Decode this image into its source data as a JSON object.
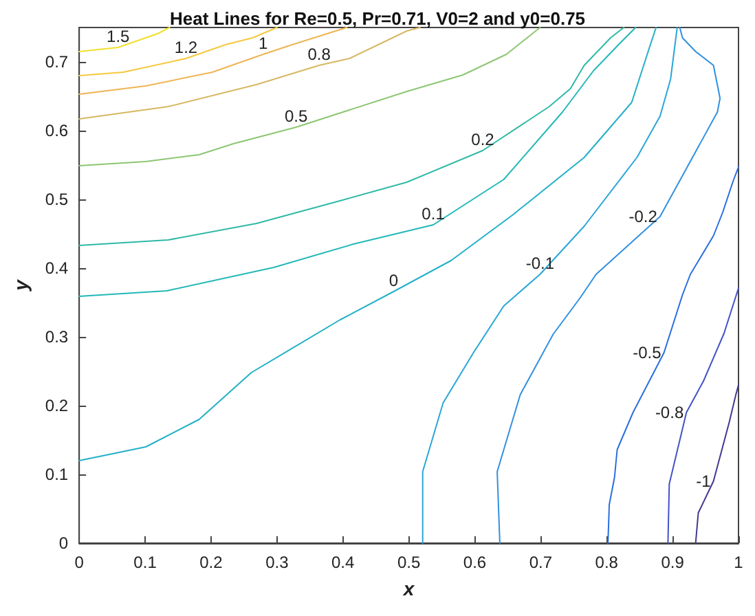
{
  "chart_data": {
    "type": "line",
    "title": "Heat Lines for Re=0.5, Pr=0.71, V0=2 and y0=0.75",
    "xlabel": "x",
    "ylabel": "y",
    "xlim": [
      0,
      1
    ],
    "ylim": [
      0,
      0.75
    ],
    "xticks": [
      0,
      0.1,
      0.2,
      0.3,
      0.4,
      0.5,
      0.6,
      0.7,
      0.8,
      0.9,
      1
    ],
    "yticks": [
      0,
      0.1,
      0.2,
      0.3,
      0.4,
      0.5,
      0.6,
      0.7
    ],
    "grid": false,
    "legend": false,
    "marker": "none",
    "line_style": "solid",
    "series": [
      {
        "name": "1.5",
        "color": "#f2e02a",
        "x": [
          0,
          0.059,
          0.119,
          0.137
        ],
        "values": [
          0.715,
          0.721,
          0.741,
          0.75
        ]
      },
      {
        "name": "1.2",
        "color": "#f6c83e",
        "x": [
          0,
          0.067,
          0.162,
          0.222,
          0.263,
          0.3
        ],
        "values": [
          0.68,
          0.685,
          0.705,
          0.725,
          0.735,
          0.75
        ]
      },
      {
        "name": "1",
        "color": "#efb452",
        "x": [
          0,
          0.101,
          0.202,
          0.279,
          0.323,
          0.376,
          0.406
        ],
        "values": [
          0.653,
          0.665,
          0.685,
          0.711,
          0.725,
          0.741,
          0.75
        ]
      },
      {
        "name": "0.8",
        "color": "#d6b862",
        "x": [
          0,
          0.135,
          0.269,
          0.364,
          0.41,
          0.497,
          0.517
        ],
        "values": [
          0.617,
          0.635,
          0.667,
          0.695,
          0.705,
          0.745,
          0.75
        ]
      },
      {
        "name": "0.5",
        "color": "#8cc672",
        "x": [
          0,
          0.101,
          0.182,
          0.234,
          0.329,
          0.497,
          0.582,
          0.648,
          0.699
        ],
        "values": [
          0.549,
          0.555,
          0.565,
          0.581,
          0.605,
          0.657,
          0.681,
          0.711,
          0.75
        ]
      },
      {
        "name": "0.2",
        "color": "#2fb9a6",
        "x": [
          0,
          0.135,
          0.269,
          0.392,
          0.497,
          0.612,
          0.713,
          0.745,
          0.766,
          0.806,
          0.826
        ],
        "values": [
          0.433,
          0.441,
          0.465,
          0.497,
          0.525,
          0.571,
          0.635,
          0.661,
          0.695,
          0.735,
          0.75
        ]
      },
      {
        "name": "0.1",
        "color": "#22b8b8",
        "x": [
          0,
          0.133,
          0.295,
          0.416,
          0.537,
          0.644,
          0.733,
          0.78,
          0.82,
          0.844
        ],
        "values": [
          0.359,
          0.367,
          0.401,
          0.435,
          0.463,
          0.529,
          0.627,
          0.687,
          0.727,
          0.75
        ]
      },
      {
        "name": "0",
        "color": "#22b0c8",
        "x": [
          0,
          0.101,
          0.182,
          0.261,
          0.396,
          0.477,
          0.564,
          0.657,
          0.766,
          0.838,
          0.867,
          0.875
        ],
        "values": [
          0.12,
          0.14,
          0.18,
          0.248,
          0.325,
          0.366,
          0.411,
          0.477,
          0.561,
          0.641,
          0.727,
          0.75
        ]
      },
      {
        "name": "-0.1",
        "color": "#29a6d8",
        "x": [
          0.521,
          0.521,
          0.552,
          0.598,
          0.644,
          0.699,
          0.766,
          0.846,
          0.881,
          0.897,
          0.907
        ],
        "values": [
          0,
          0.104,
          0.204,
          0.277,
          0.345,
          0.391,
          0.461,
          0.561,
          0.621,
          0.675,
          0.75
        ]
      },
      {
        "name": "-0.2",
        "color": "#3090e0",
        "x": [
          0.638,
          0.634,
          0.669,
          0.719,
          0.76,
          0.784,
          0.881,
          0.968,
          0.972,
          0.962,
          0.935,
          0.915,
          0.911
        ],
        "values": [
          0,
          0.104,
          0.216,
          0.304,
          0.357,
          0.391,
          0.475,
          0.627,
          0.647,
          0.695,
          0.715,
          0.735,
          0.75
        ]
      },
      {
        "name": "-0.5",
        "color": "#2a6ee0",
        "x": [
          0.802,
          0.804,
          0.812,
          0.816,
          0.84,
          0.887,
          0.915,
          0.927,
          0.962,
          0.976,
          0.992,
          1
        ],
        "values": [
          0,
          0.056,
          0.096,
          0.136,
          0.19,
          0.277,
          0.361,
          0.391,
          0.447,
          0.481,
          0.527,
          0.547
        ]
      },
      {
        "name": "-0.8",
        "color": "#4252c8",
        "x": [
          0.893,
          0.895,
          0.921,
          0.947,
          0.978,
          1
        ],
        "values": [
          0,
          0.086,
          0.19,
          0.236,
          0.305,
          0.371
        ]
      },
      {
        "name": "-1",
        "color": "#403a90",
        "x": [
          0.935,
          0.939,
          0.962,
          0.986,
          0.996,
          1
        ],
        "values": [
          0,
          0.044,
          0.09,
          0.176,
          0.216,
          0.23
        ]
      }
    ]
  }
}
